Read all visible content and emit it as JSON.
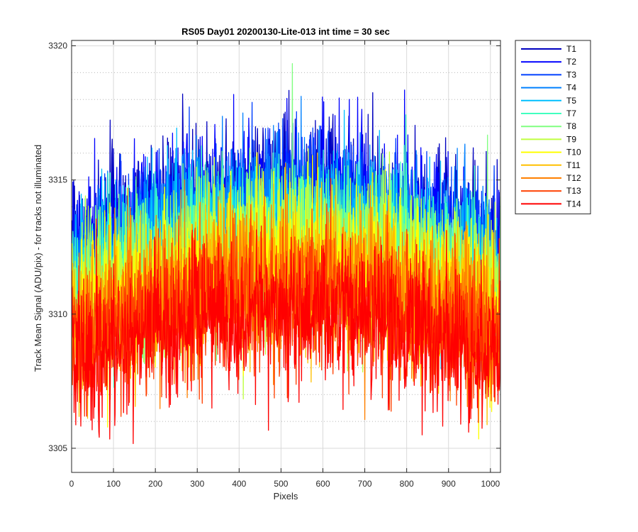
{
  "chart_data": {
    "type": "line",
    "title": "RS05 Day01 20200130-Lite-013 int time = 30 sec",
    "xlabel": "Pixels",
    "ylabel": "Track Mean Signal (ADU/pix) - for tracks not illuminated",
    "xlim": [
      0,
      1024
    ],
    "ylim": [
      3304.1,
      3320.2
    ],
    "x_ticks": [
      0,
      100,
      200,
      300,
      400,
      500,
      600,
      700,
      800,
      900,
      1000
    ],
    "y_ticks": [
      3305,
      3310,
      3315,
      3320
    ],
    "grid": "on (major solid, minor dotted on y)",
    "legend_position": "outside-right-top",
    "x_range": [
      1,
      1024
    ],
    "noise_amplitude": 1.4,
    "series": [
      {
        "name": "T1",
        "color": "#0000bf",
        "edge_level": 3312.3,
        "center_level": 3314.6
      },
      {
        "name": "T2",
        "color": "#0000ff",
        "edge_level": 3312.0,
        "center_level": 3314.3
      },
      {
        "name": "T3",
        "color": "#0040ff",
        "edge_level": 3311.7,
        "center_level": 3314.0
      },
      {
        "name": "T4",
        "color": "#0080ff",
        "edge_level": 3311.4,
        "center_level": 3313.7
      },
      {
        "name": "T5",
        "color": "#00bfff",
        "edge_level": 3311.1,
        "center_level": 3313.4
      },
      {
        "name": "T7",
        "color": "#40ffbf",
        "edge_level": 3310.8,
        "center_level": 3313.0
      },
      {
        "name": "T8",
        "color": "#80ff80",
        "edge_level": 3310.5,
        "center_level": 3312.7
      },
      {
        "name": "T9",
        "color": "#bfff40",
        "edge_level": 3310.2,
        "center_level": 3312.4
      },
      {
        "name": "T10",
        "color": "#ffff00",
        "edge_level": 3309.9,
        "center_level": 3312.0
      },
      {
        "name": "T11",
        "color": "#ffbf00",
        "edge_level": 3309.5,
        "center_level": 3311.6
      },
      {
        "name": "T12",
        "color": "#ff8000",
        "edge_level": 3309.1,
        "center_level": 3311.2
      },
      {
        "name": "T13",
        "color": "#ff4000",
        "edge_level": 3308.7,
        "center_level": 3310.7
      },
      {
        "name": "T14",
        "color": "#ff0000",
        "edge_level": 3308.2,
        "center_level": 3310.1
      }
    ]
  }
}
